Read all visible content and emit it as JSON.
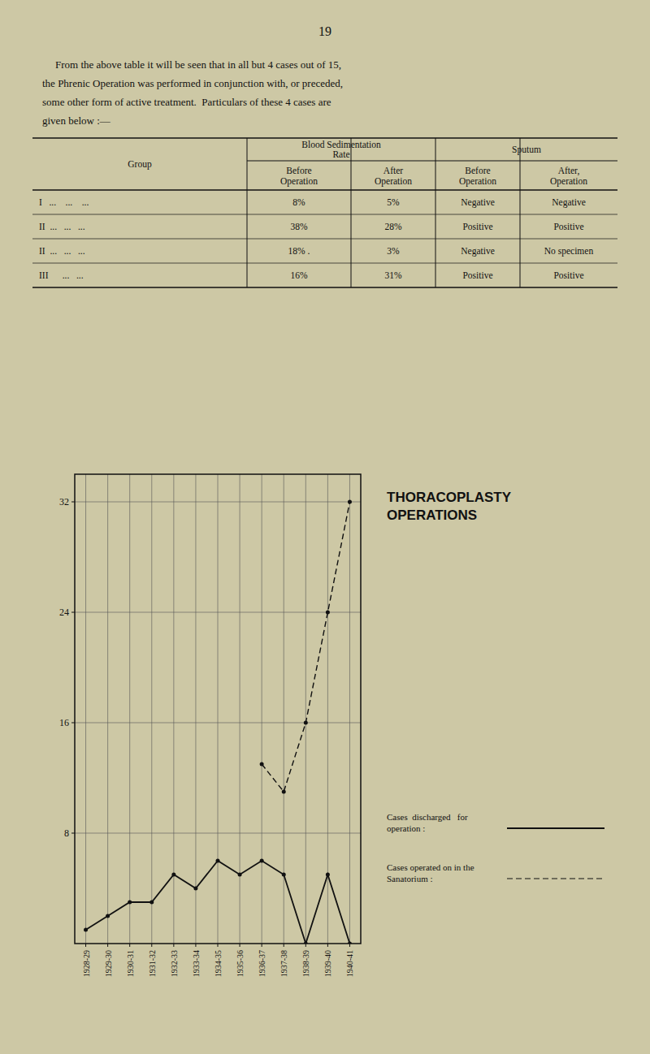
{
  "page": {
    "background": "#cdc8a5",
    "page_number": "19",
    "paragraph": [
      "From the above table it will be seen that in all but 4 cases out of 15,",
      "the Phrenic Operation was performed in conjunction with, or preceded,",
      "some other form of active treatment.  Particulars of these 4 cases are",
      "given below :—"
    ],
    "table": {
      "row_header": "Group",
      "column_groups": [
        "Blood Sedimentation\nRate",
        "Sputum"
      ],
      "column_headers": [
        "Before\nOperation",
        "After\nOperation",
        "Before\nOperation",
        "After,\nOperation"
      ],
      "rows": [
        {
          "label": "I   ...    ...    ...",
          "cells": [
            "8%",
            "5%",
            "Negative",
            "Negative"
          ]
        },
        {
          "label": "II  ...   ...   ...",
          "cells": [
            "38%",
            "28%",
            "Positive",
            "Positive"
          ]
        },
        {
          "label": "II  ...   ...   ...",
          "cells": [
            "18% .",
            "3%",
            "Negative",
            "No specimen"
          ]
        },
        {
          "label": "III      ...   ...",
          "cells": [
            "16%",
            "31%",
            "Positive",
            "Positive"
          ]
        }
      ]
    }
  },
  "chart_data": {
    "type": "line",
    "title": "THORACOPLASTY\nOPERATIONS",
    "categories": [
      "1928-29",
      "1929-30",
      "1930-31",
      "1931-32",
      "1932-33",
      "1933-34",
      "1934-35",
      "1935-36",
      "1936-37",
      "1937-38",
      "1938-39",
      "1939-40",
      "1940-41"
    ],
    "series": [
      {
        "name": "Cases  discharged   for\noperation :",
        "color": "#111111",
        "line_style": "solid",
        "marker": "circle",
        "values": [
          1,
          2,
          3,
          3,
          5,
          4,
          6,
          5,
          6,
          5,
          0,
          5,
          0
        ]
      },
      {
        "name": "Cases operated on in the\nSanatorium :",
        "color": "#111111",
        "line_style": "dashed",
        "marker": "circle",
        "values": [
          null,
          null,
          null,
          null,
          null,
          null,
          null,
          null,
          13,
          11,
          16,
          24,
          32
        ]
      }
    ],
    "ylim": [
      0,
      34
    ],
    "yticks": [
      8,
      16,
      24,
      32
    ],
    "grid": true,
    "legend": "right"
  }
}
